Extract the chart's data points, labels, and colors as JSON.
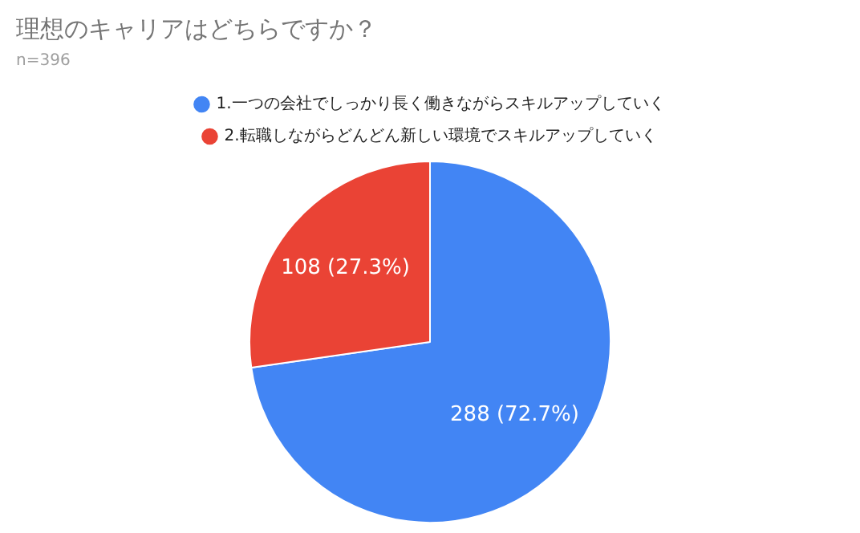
{
  "chart_data": {
    "type": "pie",
    "title": "理想のキャリアはどちらですか？",
    "subtitle": "n=396",
    "categories": [
      "1.一つの会社でしっかり長く働きながらスキルアップしていく",
      "2.転職しながらどんどん新しい環境でスキルアップしていく"
    ],
    "values": [
      288,
      108
    ],
    "colors": [
      "#4285f4",
      "#ea4335"
    ],
    "value_labels": [
      "288 (72.7%)",
      "108 (27.3%)"
    ],
    "legend": "top"
  }
}
